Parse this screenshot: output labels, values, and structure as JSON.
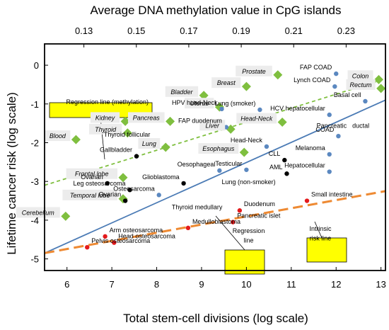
{
  "chart_data": {
    "type": "scatter",
    "xlabel": "Total stem-cell divisions (log scale)",
    "ylabel": "Lifetime cancer risk (log scale)",
    "top_xlabel": "Average DNA methylation value in CpG islands",
    "xlim": [
      5.5,
      13.1
    ],
    "ylim": [
      -5.3,
      0.55
    ],
    "top_xlim": [
      0.115,
      0.245
    ],
    "x_ticks": [
      "6",
      "7",
      "8",
      "9",
      "10",
      "11",
      "12",
      "13"
    ],
    "y_ticks": [
      "0",
      "-1",
      "-2",
      "-3",
      "-4",
      "-5"
    ],
    "top_ticks": [
      "0.13",
      "0.15",
      "0.17",
      "0.19",
      "0.21",
      "0.23"
    ],
    "grid": false,
    "colors": {
      "methylation": "#7fbf3f",
      "stem": "#5b88c0",
      "black": "#000000",
      "red": "#e41a1c",
      "regression": "#4b7bb5",
      "methylation_line": "#7fbf3f",
      "intrinsic_line": "#ee8a33",
      "callout_fill": "#ffff00"
    },
    "regression_line": {
      "x1": 5.5,
      "y1": -4.85,
      "x2": 13.1,
      "y2": -0.9
    },
    "methylation_line": {
      "x1": 5.5,
      "y1": -3.1,
      "x2": 13.1,
      "y2": -0.35
    },
    "intrinsic_line": {
      "x1": 5.5,
      "y1": -4.85,
      "x2": 13.1,
      "y2": -3.25
    },
    "methylation_points": [
      {
        "x": 6.2,
        "y": -1.92,
        "label": "Blood"
      },
      {
        "x": 7.3,
        "y": -1.45,
        "label": "Kidney"
      },
      {
        "x": 7.35,
        "y": -1.75,
        "label": "Thyroid"
      },
      {
        "x": 7.25,
        "y": -2.9,
        "label": "Frontal lobe"
      },
      {
        "x": 7.25,
        "y": -3.45,
        "label": "Temporal lobe"
      },
      {
        "x": 5.97,
        "y": -3.9,
        "label": "Cerebellum"
      },
      {
        "x": 8.3,
        "y": -1.45,
        "label": "Pancreas"
      },
      {
        "x": 9.05,
        "y": -0.78,
        "label": "Bladder"
      },
      {
        "x": 9.4,
        "y": -1.08,
        "label": "Uterus"
      },
      {
        "x": 8.2,
        "y": -2.12,
        "label": "Lung"
      },
      {
        "x": 9.65,
        "y": -1.65,
        "label": "Liver"
      },
      {
        "x": 9.95,
        "y": -2.25,
        "label": "Esophagus"
      },
      {
        "x": 10.0,
        "y": -0.55,
        "label": "Breast"
      },
      {
        "x": 10.7,
        "y": -0.25,
        "label": "Prostate"
      },
      {
        "x": 10.8,
        "y": -1.47,
        "label": "Head-Neck"
      },
      {
        "x": 12.95,
        "y": -0.37,
        "label": "Colon"
      },
      {
        "x": 13.0,
        "y": -0.6,
        "label": "Rectum"
      }
    ],
    "stem_points": [
      {
        "x": 12.0,
        "y": -0.22,
        "label": "FAP COAD"
      },
      {
        "x": 11.97,
        "y": -0.55,
        "label": "Lynch COAD"
      },
      {
        "x": 10.3,
        "y": -1.15,
        "label": "Lung (smoker)"
      },
      {
        "x": 9.45,
        "y": -1.13,
        "label": "HPV head-Neck"
      },
      {
        "x": 9.55,
        "y": -1.6,
        "label": "FAP duodenum"
      },
      {
        "x": 7.95,
        "y": -1.95,
        "label": "Thyroid follicular"
      },
      {
        "x": 10.45,
        "y": -2.1,
        "label": "Head-Neck"
      },
      {
        "x": 11.85,
        "y": -1.28,
        "label": "HCV hepatocellular"
      },
      {
        "x": 12.65,
        "y": -0.93,
        "label": "Basal cell"
      },
      {
        "x": 12.05,
        "y": -1.83,
        "label": "COAD"
      },
      {
        "x": 11.85,
        "y": -2.3,
        "label": "Melanoma"
      },
      {
        "x": 11.85,
        "y": -2.75,
        "label": "Hepatocellular"
      },
      {
        "x": 10.0,
        "y": -2.7,
        "label": "Testicular"
      },
      {
        "x": 9.4,
        "y": -2.72,
        "label": "Oesophageal"
      },
      {
        "x": 8.05,
        "y": -3.35,
        "label": "Osteosarcoma"
      }
    ],
    "black_points": [
      {
        "x": 7.55,
        "y": -2.35,
        "label": "Gallbladder"
      },
      {
        "x": 6.9,
        "y": -3.05,
        "label": "Ovarian"
      },
      {
        "x": 7.4,
        "y": -3.22,
        "label": "Leg osteosarcoma"
      },
      {
        "x": 8.6,
        "y": -3.05,
        "label": "Glioblastoma"
      },
      {
        "x": 7.3,
        "y": -3.5,
        "label": "Ovarian"
      },
      {
        "x": 10.85,
        "y": -2.45,
        "label": "CLL"
      },
      {
        "x": 10.9,
        "y": -2.8,
        "label": "AML"
      }
    ],
    "red_points": [
      {
        "x": 6.45,
        "y": -4.7,
        "label": "Pelvis osteosarcoma"
      },
      {
        "x": 6.85,
        "y": -4.42,
        "label": "Arm osteosarcoma"
      },
      {
        "x": 7.05,
        "y": -4.58,
        "label": "Head osteosarcoma"
      },
      {
        "x": 8.7,
        "y": -4.2,
        "label": "Medulloblastoma"
      },
      {
        "x": 9.85,
        "y": -3.75,
        "label": "Duodenum"
      },
      {
        "x": 9.7,
        "y": -4.05,
        "label": "Pancreatic islet"
      },
      {
        "x": 11.35,
        "y": -3.5,
        "label": "Small intestine"
      }
    ],
    "extra_labels": [
      {
        "text": "Thyroid medullary",
        "x": 8.9,
        "y": -3.72
      },
      {
        "text": "Lung (non-smoker)",
        "x": 10.05,
        "y": -3.07
      },
      {
        "text": "Pancreatic",
        "x": 11.9,
        "y": -1.62
      },
      {
        "text": "ductal",
        "x": 12.55,
        "y": -1.62
      }
    ],
    "callouts": [
      {
        "text": "Regression  line (methylation)",
        "x": 6.9,
        "y": -1.0
      },
      {
        "text": "Regression",
        "x": 10.05,
        "y": -4.33
      },
      {
        "text": "line",
        "x": 10.05,
        "y": -4.58
      },
      {
        "text": "Intrinsic",
        "x": 11.65,
        "y": -4.28
      },
      {
        "text": "risk line",
        "x": 11.65,
        "y": -4.52
      }
    ]
  }
}
